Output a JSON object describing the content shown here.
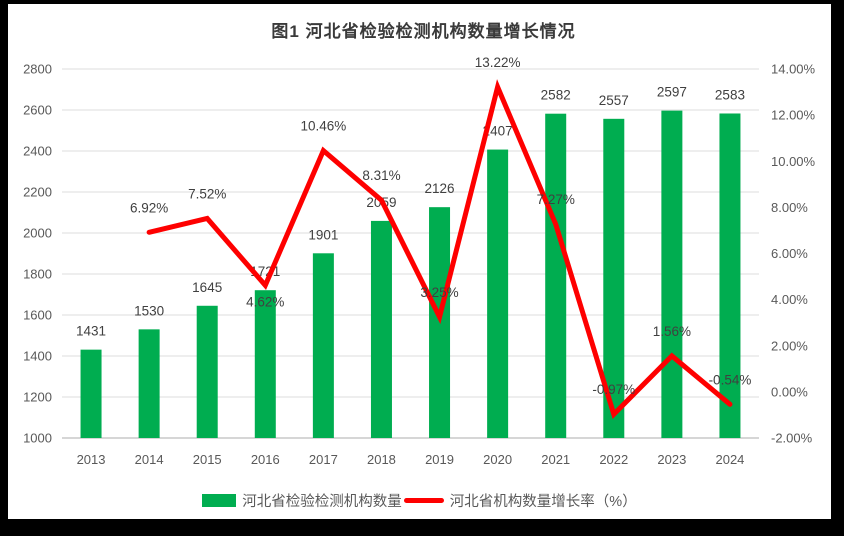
{
  "frame": {
    "background": "#000000",
    "card_background": "#ffffff"
  },
  "chart_data": {
    "type": "bar+line",
    "title": "图1  河北省检验检测机构数量增长情况",
    "categories": [
      "2013",
      "2014",
      "2015",
      "2016",
      "2017",
      "2018",
      "2019",
      "2020",
      "2021",
      "2022",
      "2023",
      "2024"
    ],
    "series": [
      {
        "name": "河北省检验检测机构数量",
        "type": "bar",
        "axis": "left",
        "color": "#00AD50",
        "values": [
          1431,
          1530,
          1645,
          1721,
          1901,
          2059,
          2126,
          2407,
          2582,
          2557,
          2597,
          2583
        ],
        "labels": [
          "1431",
          "1530",
          "1645",
          "1721",
          "1901",
          "2059",
          "2126",
          "2407",
          "2582",
          "2557",
          "2597",
          "2583"
        ]
      },
      {
        "name": "河北省机构数量增长率（%）",
        "type": "line",
        "axis": "right",
        "color": "#FE0000",
        "values": [
          null,
          6.92,
          7.52,
          4.62,
          10.46,
          8.31,
          3.25,
          13.22,
          7.27,
          -0.97,
          1.56,
          -0.54
        ],
        "labels": [
          null,
          "6.92%",
          "7.52%",
          "4.62%",
          "10.46%",
          "8.31%",
          "3.25%",
          "13.22%",
          "7.27%",
          "-0.97%",
          "1.56%",
          "-0.54%"
        ]
      }
    ],
    "left_axis": {
      "min": 1000,
      "max": 2800,
      "step": 200,
      "ticks": [
        "1000",
        "1200",
        "1400",
        "1600",
        "1800",
        "2000",
        "2200",
        "2400",
        "2600",
        "2800"
      ]
    },
    "right_axis": {
      "min": -2,
      "max": 14,
      "step": 2,
      "ticks": [
        "-2.00%",
        "0.00%",
        "2.00%",
        "4.00%",
        "6.00%",
        "8.00%",
        "10.00%",
        "12.00%",
        "14.00%"
      ]
    },
    "grid": true,
    "legend_position": "bottom",
    "gridline_color": "#e3e3e3",
    "axisline_color": "#c8c8c8"
  }
}
